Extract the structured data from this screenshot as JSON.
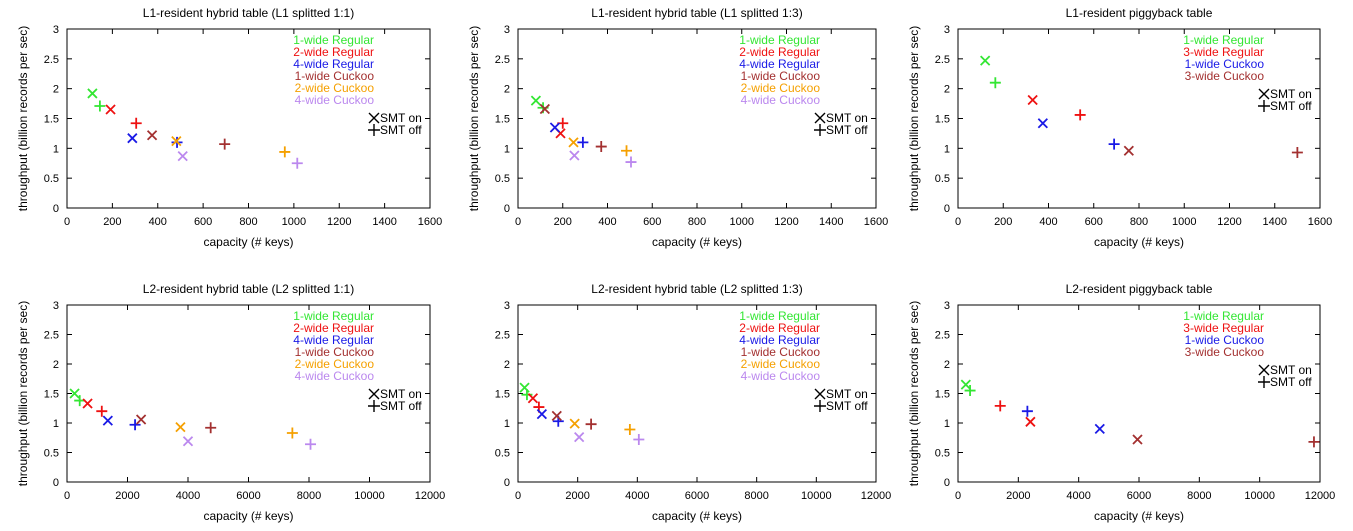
{
  "colors": {
    "1-wide Regular": "#33e633",
    "2-wide Regular": "#ee1111",
    "3-wide Regular": "#ee1111",
    "4-wide Regular": "#1a1ae6",
    "1-wide Cuckoo": "#a33030",
    "2-wide Cuckoo": "#f5a000",
    "3-wide Cuckoo": "#a33030",
    "4-wide Cuckoo": "#bb88ee"
  },
  "piggyback_colors": {
    "1-wide Regular": "#33e633",
    "3-wide Regular": "#ee1111",
    "1-wide Cuckoo": "#1a1ae6",
    "3-wide Cuckoo": "#a33030"
  },
  "marker_legend": [
    {
      "symbol": "x",
      "label": "SMT on"
    },
    {
      "symbol": "+",
      "label": "SMT off"
    }
  ],
  "chart_data": [
    {
      "type": "scatter",
      "title": "L1-resident hybrid table (L1 splitted 1:1)",
      "xlabel": "capacity (# keys)",
      "ylabel": "throughput (billion records per sec)",
      "xlim": [
        0,
        1600
      ],
      "ylim": [
        0,
        3
      ],
      "xticks": [
        0,
        200,
        400,
        600,
        800,
        1000,
        1200,
        1400,
        1600
      ],
      "yticks": [
        0,
        0.5,
        1,
        1.5,
        2,
        2.5,
        3
      ],
      "legend": [
        "1-wide Regular",
        "2-wide Regular",
        "4-wide Regular",
        "1-wide Cuckoo",
        "2-wide Cuckoo",
        "4-wide Cuckoo"
      ],
      "points": [
        {
          "series": "1-wide Regular",
          "marker": "x",
          "x": 112,
          "y": 1.92
        },
        {
          "series": "1-wide Regular",
          "marker": "+",
          "x": 145,
          "y": 1.71
        },
        {
          "series": "2-wide Regular",
          "marker": "x",
          "x": 192,
          "y": 1.65
        },
        {
          "series": "2-wide Regular",
          "marker": "+",
          "x": 305,
          "y": 1.42
        },
        {
          "series": "4-wide Regular",
          "marker": "x",
          "x": 288,
          "y": 1.17
        },
        {
          "series": "4-wide Regular",
          "marker": "+",
          "x": 485,
          "y": 1.1
        },
        {
          "series": "1-wide Cuckoo",
          "marker": "x",
          "x": 375,
          "y": 1.22
        },
        {
          "series": "1-wide Cuckoo",
          "marker": "+",
          "x": 695,
          "y": 1.07
        },
        {
          "series": "2-wide Cuckoo",
          "marker": "x",
          "x": 482,
          "y": 1.12
        },
        {
          "series": "2-wide Cuckoo",
          "marker": "+",
          "x": 960,
          "y": 0.94
        },
        {
          "series": "4-wide Cuckoo",
          "marker": "x",
          "x": 510,
          "y": 0.87
        },
        {
          "series": "4-wide Cuckoo",
          "marker": "+",
          "x": 1015,
          "y": 0.75
        }
      ]
    },
    {
      "type": "scatter",
      "title": "L1-resident hybrid table (L1 splitted 1:3)",
      "xlabel": "capacity (# keys)",
      "ylabel": "throughput (billion records per sec)",
      "xlim": [
        0,
        1600
      ],
      "ylim": [
        0,
        3
      ],
      "xticks": [
        0,
        200,
        400,
        600,
        800,
        1000,
        1200,
        1400,
        1600
      ],
      "yticks": [
        0,
        0.5,
        1,
        1.5,
        2,
        2.5,
        3
      ],
      "legend": [
        "1-wide Regular",
        "2-wide Regular",
        "4-wide Regular",
        "1-wide Cuckoo",
        "2-wide Cuckoo",
        "4-wide Cuckoo"
      ],
      "points": [
        {
          "series": "1-wide Regular",
          "marker": "x",
          "x": 80,
          "y": 1.8
        },
        {
          "series": "1-wide Regular",
          "marker": "+",
          "x": 112,
          "y": 1.68
        },
        {
          "series": "2-wide Regular",
          "marker": "x",
          "x": 190,
          "y": 1.25
        },
        {
          "series": "2-wide Regular",
          "marker": "+",
          "x": 200,
          "y": 1.42
        },
        {
          "series": "4-wide Regular",
          "marker": "x",
          "x": 165,
          "y": 1.35
        },
        {
          "series": "4-wide Regular",
          "marker": "+",
          "x": 290,
          "y": 1.1
        },
        {
          "series": "1-wide Cuckoo",
          "marker": "x",
          "x": 120,
          "y": 1.66
        },
        {
          "series": "1-wide Cuckoo",
          "marker": "+",
          "x": 372,
          "y": 1.03
        },
        {
          "series": "2-wide Cuckoo",
          "marker": "x",
          "x": 248,
          "y": 1.1
        },
        {
          "series": "2-wide Cuckoo",
          "marker": "+",
          "x": 485,
          "y": 0.96
        },
        {
          "series": "4-wide Cuckoo",
          "marker": "x",
          "x": 252,
          "y": 0.88
        },
        {
          "series": "4-wide Cuckoo",
          "marker": "+",
          "x": 505,
          "y": 0.77
        }
      ]
    },
    {
      "type": "scatter",
      "title": "L1-resident piggyback table",
      "xlabel": "capacity (# keys)",
      "ylabel": "throughput (billion records per sec)",
      "xlim": [
        0,
        1600
      ],
      "ylim": [
        0,
        3
      ],
      "xticks": [
        0,
        200,
        400,
        600,
        800,
        1000,
        1200,
        1400,
        1600
      ],
      "yticks": [
        0,
        0.5,
        1,
        1.5,
        2,
        2.5,
        3
      ],
      "legend": [
        "1-wide Regular",
        "3-wide Regular",
        "1-wide Cuckoo",
        "3-wide Cuckoo"
      ],
      "points": [
        {
          "series": "1-wide Regular",
          "marker": "x",
          "x": 120,
          "y": 2.47
        },
        {
          "series": "1-wide Regular",
          "marker": "+",
          "x": 165,
          "y": 2.1
        },
        {
          "series": "3-wide Regular",
          "marker": "x",
          "x": 330,
          "y": 1.81
        },
        {
          "series": "3-wide Regular",
          "marker": "+",
          "x": 540,
          "y": 1.56
        },
        {
          "series": "1-wide Cuckoo",
          "marker": "x",
          "x": 375,
          "y": 1.42
        },
        {
          "series": "1-wide Cuckoo",
          "marker": "+",
          "x": 690,
          "y": 1.07
        },
        {
          "series": "3-wide Cuckoo",
          "marker": "x",
          "x": 755,
          "y": 0.96
        },
        {
          "series": "3-wide Cuckoo",
          "marker": "+",
          "x": 1500,
          "y": 0.93
        }
      ]
    },
    {
      "type": "scatter",
      "title": "L2-resident hybrid table (L2 splitted 1:1)",
      "xlabel": "capacity (# keys)",
      "ylabel": "throughput (billion records per sec)",
      "xlim": [
        0,
        12000
      ],
      "ylim": [
        0,
        3
      ],
      "xticks": [
        0,
        2000,
        4000,
        6000,
        8000,
        10000,
        12000
      ],
      "yticks": [
        0,
        0.5,
        1,
        1.5,
        2,
        2.5,
        3
      ],
      "legend": [
        "1-wide Regular",
        "2-wide Regular",
        "4-wide Regular",
        "1-wide Cuckoo",
        "2-wide Cuckoo",
        "4-wide Cuckoo"
      ],
      "points": [
        {
          "series": "1-wide Regular",
          "marker": "x",
          "x": 250,
          "y": 1.5
        },
        {
          "series": "1-wide Regular",
          "marker": "+",
          "x": 420,
          "y": 1.38
        },
        {
          "series": "2-wide Regular",
          "marker": "x",
          "x": 680,
          "y": 1.33
        },
        {
          "series": "2-wide Regular",
          "marker": "+",
          "x": 1150,
          "y": 1.2
        },
        {
          "series": "4-wide Regular",
          "marker": "x",
          "x": 1350,
          "y": 1.04
        },
        {
          "series": "4-wide Regular",
          "marker": "+",
          "x": 2250,
          "y": 0.97
        },
        {
          "series": "1-wide Cuckoo",
          "marker": "x",
          "x": 2450,
          "y": 1.06
        },
        {
          "series": "1-wide Cuckoo",
          "marker": "+",
          "x": 4750,
          "y": 0.92
        },
        {
          "series": "2-wide Cuckoo",
          "marker": "x",
          "x": 3750,
          "y": 0.93
        },
        {
          "series": "2-wide Cuckoo",
          "marker": "+",
          "x": 7450,
          "y": 0.83
        },
        {
          "series": "4-wide Cuckoo",
          "marker": "x",
          "x": 4000,
          "y": 0.69
        },
        {
          "series": "4-wide Cuckoo",
          "marker": "+",
          "x": 8050,
          "y": 0.64
        }
      ]
    },
    {
      "type": "scatter",
      "title": "L2-resident hybrid table (L2 splitted 1:3)",
      "xlabel": "capacity (# keys)",
      "ylabel": "",
      "xlim": [
        0,
        12000
      ],
      "ylim": [
        0,
        3
      ],
      "xticks": [
        0,
        2000,
        4000,
        6000,
        8000,
        10000,
        12000
      ],
      "yticks": [
        0,
        0.5,
        1,
        1.5,
        2,
        2.5,
        3
      ],
      "legend": [
        "1-wide Regular",
        "2-wide Regular",
        "4-wide Regular",
        "1-wide Cuckoo",
        "2-wide Cuckoo",
        "4-wide Cuckoo"
      ],
      "points": [
        {
          "series": "1-wide Regular",
          "marker": "x",
          "x": 220,
          "y": 1.6
        },
        {
          "series": "1-wide Regular",
          "marker": "+",
          "x": 300,
          "y": 1.48
        },
        {
          "series": "2-wide Regular",
          "marker": "x",
          "x": 500,
          "y": 1.42
        },
        {
          "series": "2-wide Regular",
          "marker": "+",
          "x": 700,
          "y": 1.27
        },
        {
          "series": "4-wide Regular",
          "marker": "x",
          "x": 800,
          "y": 1.15
        },
        {
          "series": "4-wide Regular",
          "marker": "+",
          "x": 1350,
          "y": 1.03
        },
        {
          "series": "1-wide Cuckoo",
          "marker": "x",
          "x": 1300,
          "y": 1.12
        },
        {
          "series": "1-wide Cuckoo",
          "marker": "+",
          "x": 2450,
          "y": 0.98
        },
        {
          "series": "2-wide Cuckoo",
          "marker": "x",
          "x": 1900,
          "y": 0.99
        },
        {
          "series": "2-wide Cuckoo",
          "marker": "+",
          "x": 3750,
          "y": 0.89
        },
        {
          "series": "4-wide Cuckoo",
          "marker": "x",
          "x": 2050,
          "y": 0.76
        },
        {
          "series": "4-wide Cuckoo",
          "marker": "+",
          "x": 4050,
          "y": 0.72
        }
      ]
    },
    {
      "type": "scatter",
      "title": "L2-resident piggyback table",
      "xlabel": "capacity (# keys)",
      "ylabel": "throughput (billion records per sec)",
      "xlim": [
        0,
        12000
      ],
      "ylim": [
        0,
        3
      ],
      "xticks": [
        0,
        2000,
        4000,
        6000,
        8000,
        10000,
        12000
      ],
      "yticks": [
        0,
        0.5,
        1,
        1.5,
        2,
        2.5,
        3
      ],
      "legend": [
        "1-wide Regular",
        "3-wide Regular",
        "1-wide Cuckoo",
        "3-wide Cuckoo"
      ],
      "points": [
        {
          "series": "1-wide Regular",
          "marker": "x",
          "x": 260,
          "y": 1.65
        },
        {
          "series": "1-wide Regular",
          "marker": "+",
          "x": 400,
          "y": 1.55
        },
        {
          "series": "3-wide Regular",
          "marker": "x",
          "x": 2400,
          "y": 1.02
        },
        {
          "series": "3-wide Regular",
          "marker": "+",
          "x": 1400,
          "y": 1.29
        },
        {
          "series": "1-wide Cuckoo",
          "marker": "+",
          "x": 2300,
          "y": 1.2
        },
        {
          "series": "1-wide Cuckoo",
          "marker": "x",
          "x": 4700,
          "y": 0.9
        },
        {
          "series": "3-wide Cuckoo",
          "marker": "x",
          "x": 5950,
          "y": 0.72
        },
        {
          "series": "3-wide Cuckoo",
          "marker": "+",
          "x": 11800,
          "y": 0.68
        }
      ]
    }
  ]
}
